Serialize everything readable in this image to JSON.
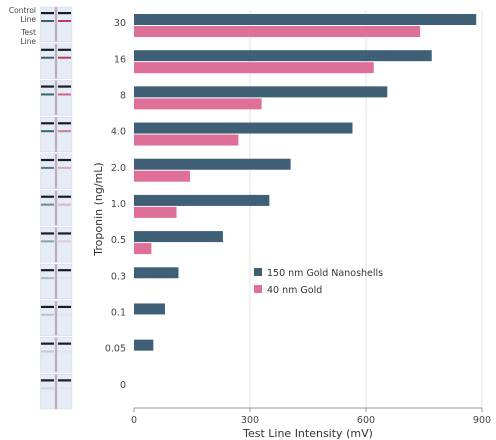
{
  "strip_labels": {
    "control": [
      "Control",
      "Line"
    ],
    "test": [
      "Test",
      "Line"
    ]
  },
  "colors": {
    "nanoshells": "#3e5f75",
    "gold40": "#dd6f98",
    "control_line": "#1a1c2a",
    "test_line": "#c43a62",
    "strip_bg": "#e6ecf5"
  },
  "chart_data": {
    "type": "bar",
    "orientation": "horizontal",
    "xlabel": "Test Line Intensity (mV)",
    "ylabel": "Troponin (ng/mL)",
    "xlim": [
      0,
      900
    ],
    "xticks": [
      "0",
      "300",
      "600",
      "900"
    ],
    "categories": [
      "30",
      "16",
      "8",
      "4.0",
      "2.0",
      "1.0",
      "0.5",
      "0.3",
      "0.1",
      "0.05",
      "0"
    ],
    "series": [
      {
        "name": "150 nm Gold Nanoshells",
        "color": "#3e5f75",
        "values": [
          885,
          770,
          655,
          565,
          405,
          350,
          230,
          115,
          80,
          50,
          0
        ]
      },
      {
        "name": "40 nm Gold",
        "color": "#dd6f98",
        "values": [
          740,
          620,
          330,
          270,
          145,
          110,
          45,
          null,
          null,
          null,
          null
        ]
      }
    ],
    "grid": true,
    "legend": "center-right"
  }
}
